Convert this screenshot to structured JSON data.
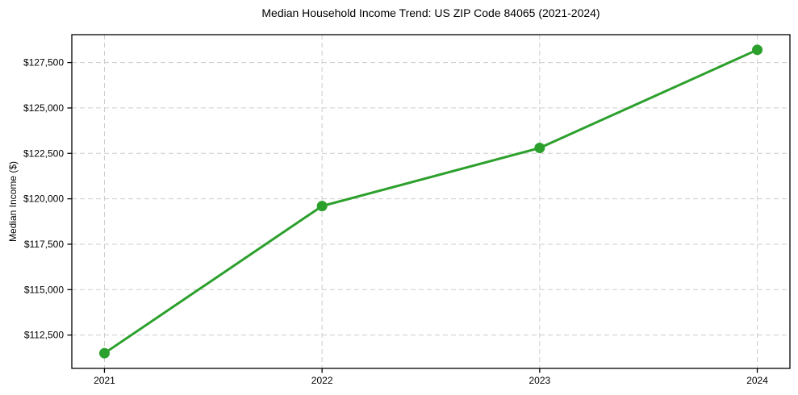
{
  "chart_data": {
    "type": "line",
    "title": "Median Household Income Trend: US ZIP Code 84065 (2021-2024)",
    "xlabel": "",
    "ylabel": "Median Income ($)",
    "x": [
      2021,
      2022,
      2023,
      2024
    ],
    "x_tick_labels": [
      "2021",
      "2022",
      "2023",
      "2024"
    ],
    "y_ticks": [
      112500,
      115000,
      117500,
      120000,
      122500,
      125000,
      127500
    ],
    "y_tick_labels": [
      "$112,500",
      "$115,000",
      "$117,500",
      "$120,000",
      "$122,500",
      "$125,000",
      "$127,500"
    ],
    "series": [
      {
        "name": "Median Household Income",
        "values": [
          111500,
          119600,
          122800,
          128200
        ],
        "color": "#2ca02c",
        "marker": "circle"
      }
    ],
    "xlim": [
      2020.85,
      2024.15
    ],
    "ylim": [
      110665,
      129035
    ],
    "grid": true,
    "grid_style": "dashed",
    "grid_color": "#cccccc",
    "legend_position": "none",
    "background_color": "#ffffff"
  }
}
